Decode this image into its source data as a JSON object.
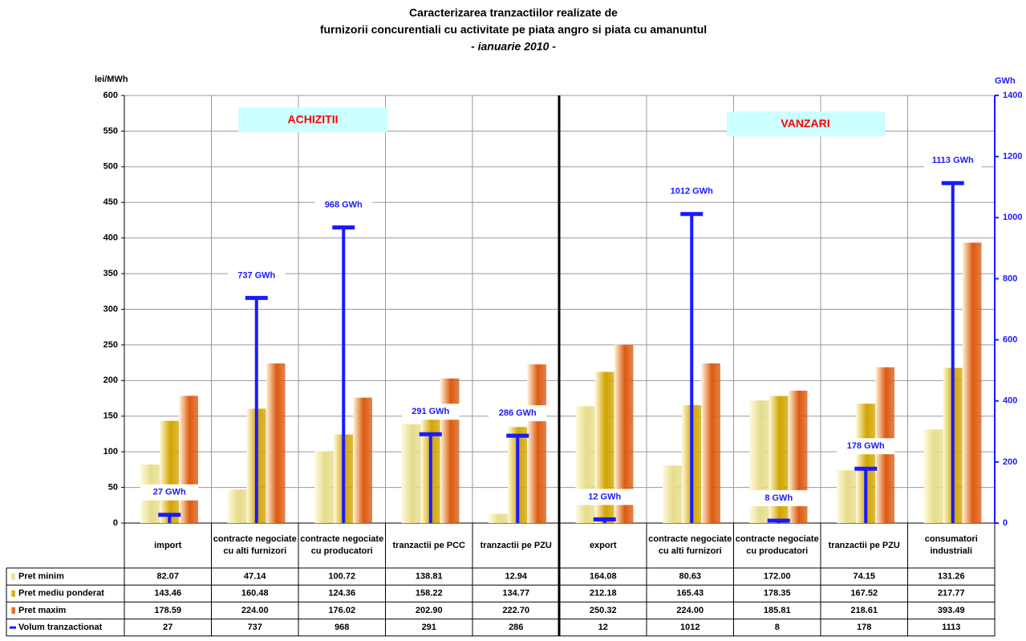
{
  "chart_data": {
    "type": "bar",
    "title_lines": [
      "Caracterizarea tranzactiilor realizate de",
      "furnizorii concurentiali cu activitate pe piata angro si piata cu amanuntul",
      "- ianuarie 2010 -"
    ],
    "y_label": "lei/MWh",
    "y2_label": "GWh",
    "annotations": [
      "ACHIZITII",
      "VANZARI"
    ],
    "categories": [
      "import",
      "contracte negociate cu alti furnizori",
      "contracte negociate cu producatori",
      "tranzactii pe PCC",
      "tranzactii pe PZU",
      "export",
      "contracte negociate cu alti furnizori",
      "contracte negociate cu producatori",
      "tranzactii pe PZU",
      "consumatori industriali"
    ],
    "series": [
      {
        "name": "Pret minim",
        "color": "#e6dc8a",
        "values": [
          82.07,
          47.14,
          100.72,
          138.81,
          12.94,
          164.08,
          80.63,
          172.0,
          74.15,
          131.26
        ],
        "value_labels": [
          "82.07",
          "47.14",
          "100.72",
          "138.81",
          "12.94",
          "164.08",
          "80.63",
          "172.00",
          "74.15",
          "131.26"
        ]
      },
      {
        "name": "Pret mediu ponderat",
        "color": "#d2a400",
        "values": [
          143.46,
          160.48,
          124.36,
          158.22,
          134.77,
          212.18,
          165.43,
          178.35,
          167.52,
          217.77
        ]
      },
      {
        "name": "Pret maxim",
        "color": "#dc5a10",
        "values": [
          178.59,
          224.0,
          176.02,
          202.9,
          222.7,
          250.32,
          224.0,
          185.81,
          218.61,
          393.49
        ],
        "value_labels": [
          "178.59",
          "224.00",
          "176.02",
          "202.90",
          "222.70",
          "250.32",
          "224.00",
          "185.81",
          "218.61",
          "393.49"
        ]
      },
      {
        "name": "Volum tranzactionat",
        "color": "#1a1aff",
        "axis": "y2",
        "values": [
          27,
          737,
          968,
          291,
          286,
          12,
          1012,
          8,
          178,
          1113
        ],
        "value_labels": [
          "27 GWh",
          "737 GWh",
          "968 GWh",
          "291 GWh",
          "286 GWh",
          "12 GWh",
          "1012 GWh",
          "8 GWh",
          "178 GWh",
          "1113 GWh"
        ]
      }
    ],
    "ylim": [
      0,
      600
    ],
    "yticks": [
      0,
      50,
      100,
      150,
      200,
      250,
      300,
      350,
      400,
      450,
      500,
      550,
      600
    ],
    "y2lim": [
      0,
      1400
    ],
    "y2ticks": [
      0,
      200,
      400,
      600,
      800,
      1000,
      1200,
      1400
    ],
    "grid": true
  }
}
